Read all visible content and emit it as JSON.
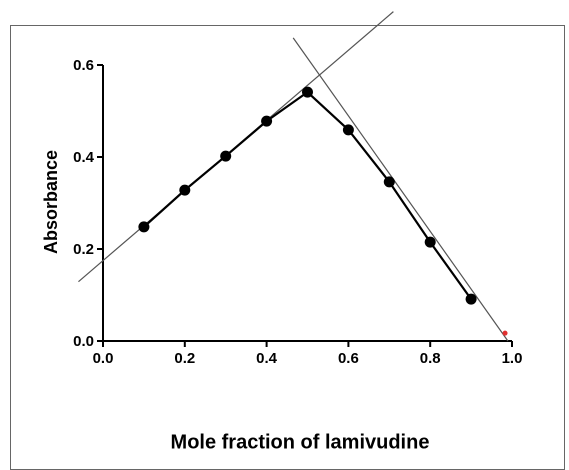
{
  "chart_data": {
    "type": "line",
    "xlabel": "Absorbance",
    "ylabel": "Mole fraction of lamivudine",
    "x": [
      0.1,
      0.2,
      0.3,
      0.4,
      0.5,
      0.6,
      0.7,
      0.8,
      0.9
    ],
    "series": [
      {
        "color": "#000000",
        "values": [
          0.248,
          0.328,
          0.402,
          0.478,
          0.541,
          0.459,
          0.346,
          0.215,
          0.091
        ]
      }
    ],
    "points": {
      "color": "#e03030",
      "x": [
        0.983
      ],
      "values": [
        0.017
      ]
    },
    "reference_lines": [
      {
        "color": "#555555",
        "x": [
          -0.06,
          0.71
        ],
        "values": [
          0.129,
          0.716
        ]
      },
      {
        "color": "#555555",
        "x": [
          0.465,
          0.99
        ],
        "values": [
          0.659,
          0.0
        ]
      }
    ],
    "xlim": [
      0,
      1.0
    ],
    "ylim": [
      0,
      0.6
    ],
    "xticks": [
      {
        "value": 0,
        "label": "0.0"
      },
      0.2,
      0.4,
      0.6,
      0.8,
      {
        "value": 1.0,
        "label": "1.0"
      }
    ],
    "yticks": [
      {
        "value": 0,
        "label": "0.0"
      },
      0.2,
      0.4,
      0.6
    ],
    "grid": false
  }
}
